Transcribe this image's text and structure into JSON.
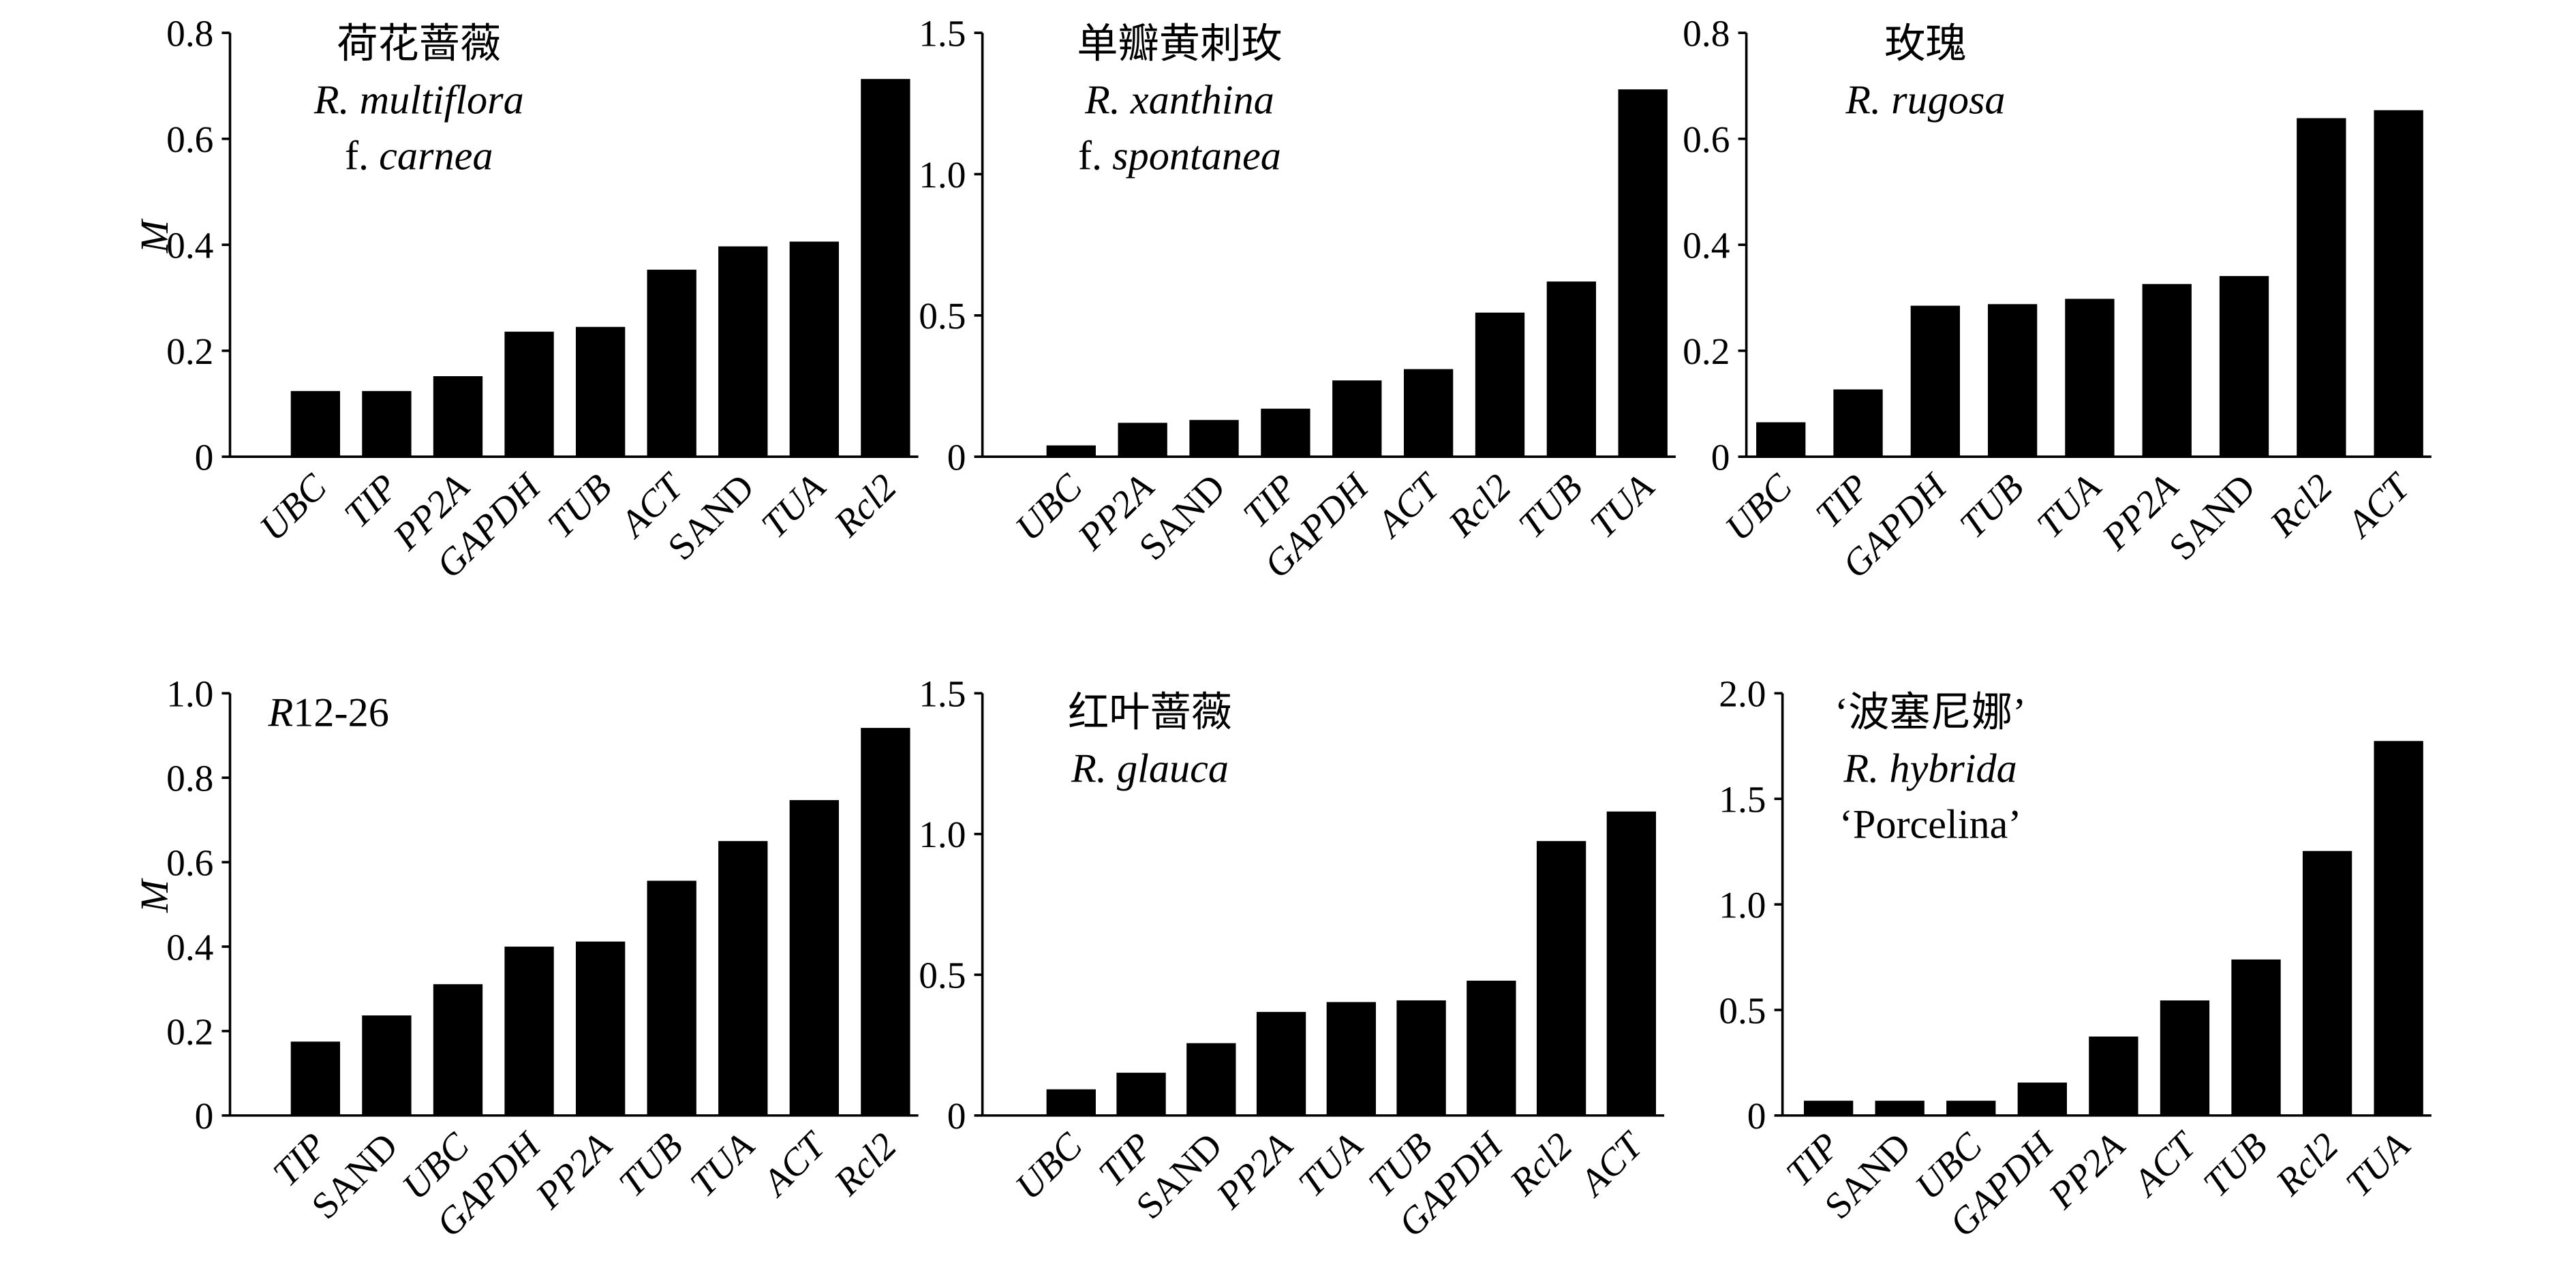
{
  "chart_data": [
    {
      "type": "bar",
      "ylabel": "M",
      "ylim": [
        0,
        0.8
      ],
      "yticks": [
        "0",
        "0.2",
        "0.4",
        "0.6",
        "0.8"
      ],
      "title_lines": [
        [
          {
            "t": "荷花蔷薇",
            "i": false
          }
        ],
        [
          {
            "t": "R. multiflora",
            "i": true
          }
        ],
        [
          {
            "t": "f. ",
            "i": false
          },
          {
            "t": "carnea",
            "i": true
          }
        ]
      ],
      "categories": [
        "UBC",
        "TIP",
        "PP2A",
        "GAPDH",
        "TUB",
        "ACT",
        "SAND",
        "TUA",
        "Rcl2"
      ],
      "values": [
        0.124,
        0.124,
        0.152,
        0.236,
        0.245,
        0.353,
        0.397,
        0.406,
        0.713
      ]
    },
    {
      "type": "bar",
      "ylabel": "",
      "ylim": [
        0,
        1.5
      ],
      "yticks": [
        "0",
        "0.5",
        "1.0",
        "1.5"
      ],
      "title_lines": [
        [
          {
            "t": "单瓣黄刺玫",
            "i": false
          }
        ],
        [
          {
            "t": "R. xanthina",
            "i": true
          }
        ],
        [
          {
            "t": "f. ",
            "i": false
          },
          {
            "t": "spontanea",
            "i": true
          }
        ]
      ],
      "categories": [
        "UBC",
        "PP2A",
        "SAND",
        "TIP",
        "GAPDH",
        "ACT",
        "Rcl2",
        "TUB",
        "TUA"
      ],
      "values": [
        0.04,
        0.12,
        0.13,
        0.17,
        0.27,
        0.31,
        0.51,
        0.62,
        1.3
      ]
    },
    {
      "type": "bar",
      "ylabel": "",
      "ylim": [
        0,
        0.8
      ],
      "yticks": [
        "0",
        "0.2",
        "0.4",
        "0.6",
        "0.8"
      ],
      "title_lines": [
        [
          {
            "t": "玫瑰",
            "i": false
          }
        ],
        [
          {
            "t": "R. rugosa",
            "i": true
          }
        ]
      ],
      "categories": [
        "UBC",
        "TIP",
        "GAPDH",
        "TUB",
        "TUA",
        "PP2A",
        "SAND",
        "Rcl2",
        "ACT"
      ],
      "values": [
        0.065,
        0.127,
        0.285,
        0.288,
        0.298,
        0.326,
        0.341,
        0.639,
        0.654
      ]
    },
    {
      "type": "bar",
      "ylabel": "M",
      "ylim": [
        0,
        1.0
      ],
      "yticks": [
        "0",
        "0.2",
        "0.4",
        "0.6",
        "0.8",
        "1.0"
      ],
      "title_lines": [
        [
          {
            "t": "R",
            "i": true
          },
          {
            "t": "12-26",
            "i": false
          }
        ]
      ],
      "categories": [
        "TIP",
        "SAND",
        "UBC",
        "GAPDH",
        "PP2A",
        "TUB",
        "TUA",
        "ACT",
        "Rcl2"
      ],
      "values": [
        0.175,
        0.237,
        0.311,
        0.4,
        0.412,
        0.556,
        0.65,
        0.747,
        0.918
      ]
    },
    {
      "type": "bar",
      "ylabel": "",
      "ylim": [
        0,
        1.5
      ],
      "yticks": [
        "0",
        "0.5",
        "1.0",
        "1.5"
      ],
      "title_lines": [
        [
          {
            "t": "红叶蔷薇",
            "i": false
          }
        ],
        [
          {
            "t": "R. glauca",
            "i": true
          }
        ]
      ],
      "categories": [
        "UBC",
        "TIP",
        "SAND",
        "PP2A",
        "TUA",
        "TUB",
        "GAPDH",
        "Rcl2",
        "ACT"
      ],
      "values": [
        0.093,
        0.152,
        0.257,
        0.368,
        0.403,
        0.409,
        0.479,
        0.975,
        1.08
      ]
    },
    {
      "type": "bar",
      "ylabel": "",
      "ylim": [
        0,
        2.0
      ],
      "yticks": [
        "0",
        "0.5",
        "1.0",
        "1.5",
        "2.0"
      ],
      "title_lines": [
        [
          {
            "t": "‘波塞尼娜’",
            "i": false
          }
        ],
        [
          {
            "t": "R. hybrida",
            "i": true
          }
        ],
        [
          {
            "t": "‘Porcelina’",
            "i": false
          }
        ]
      ],
      "categories": [
        "TIP",
        "SAND",
        "UBC",
        "GAPDH",
        "PP2A",
        "ACT",
        "TUB",
        "Rcl2",
        "TUA"
      ],
      "values": [
        0.07,
        0.07,
        0.07,
        0.156,
        0.374,
        0.545,
        0.739,
        1.253,
        1.774
      ]
    }
  ],
  "colors": {
    "bar": "#000000",
    "axis": "#000000"
  }
}
